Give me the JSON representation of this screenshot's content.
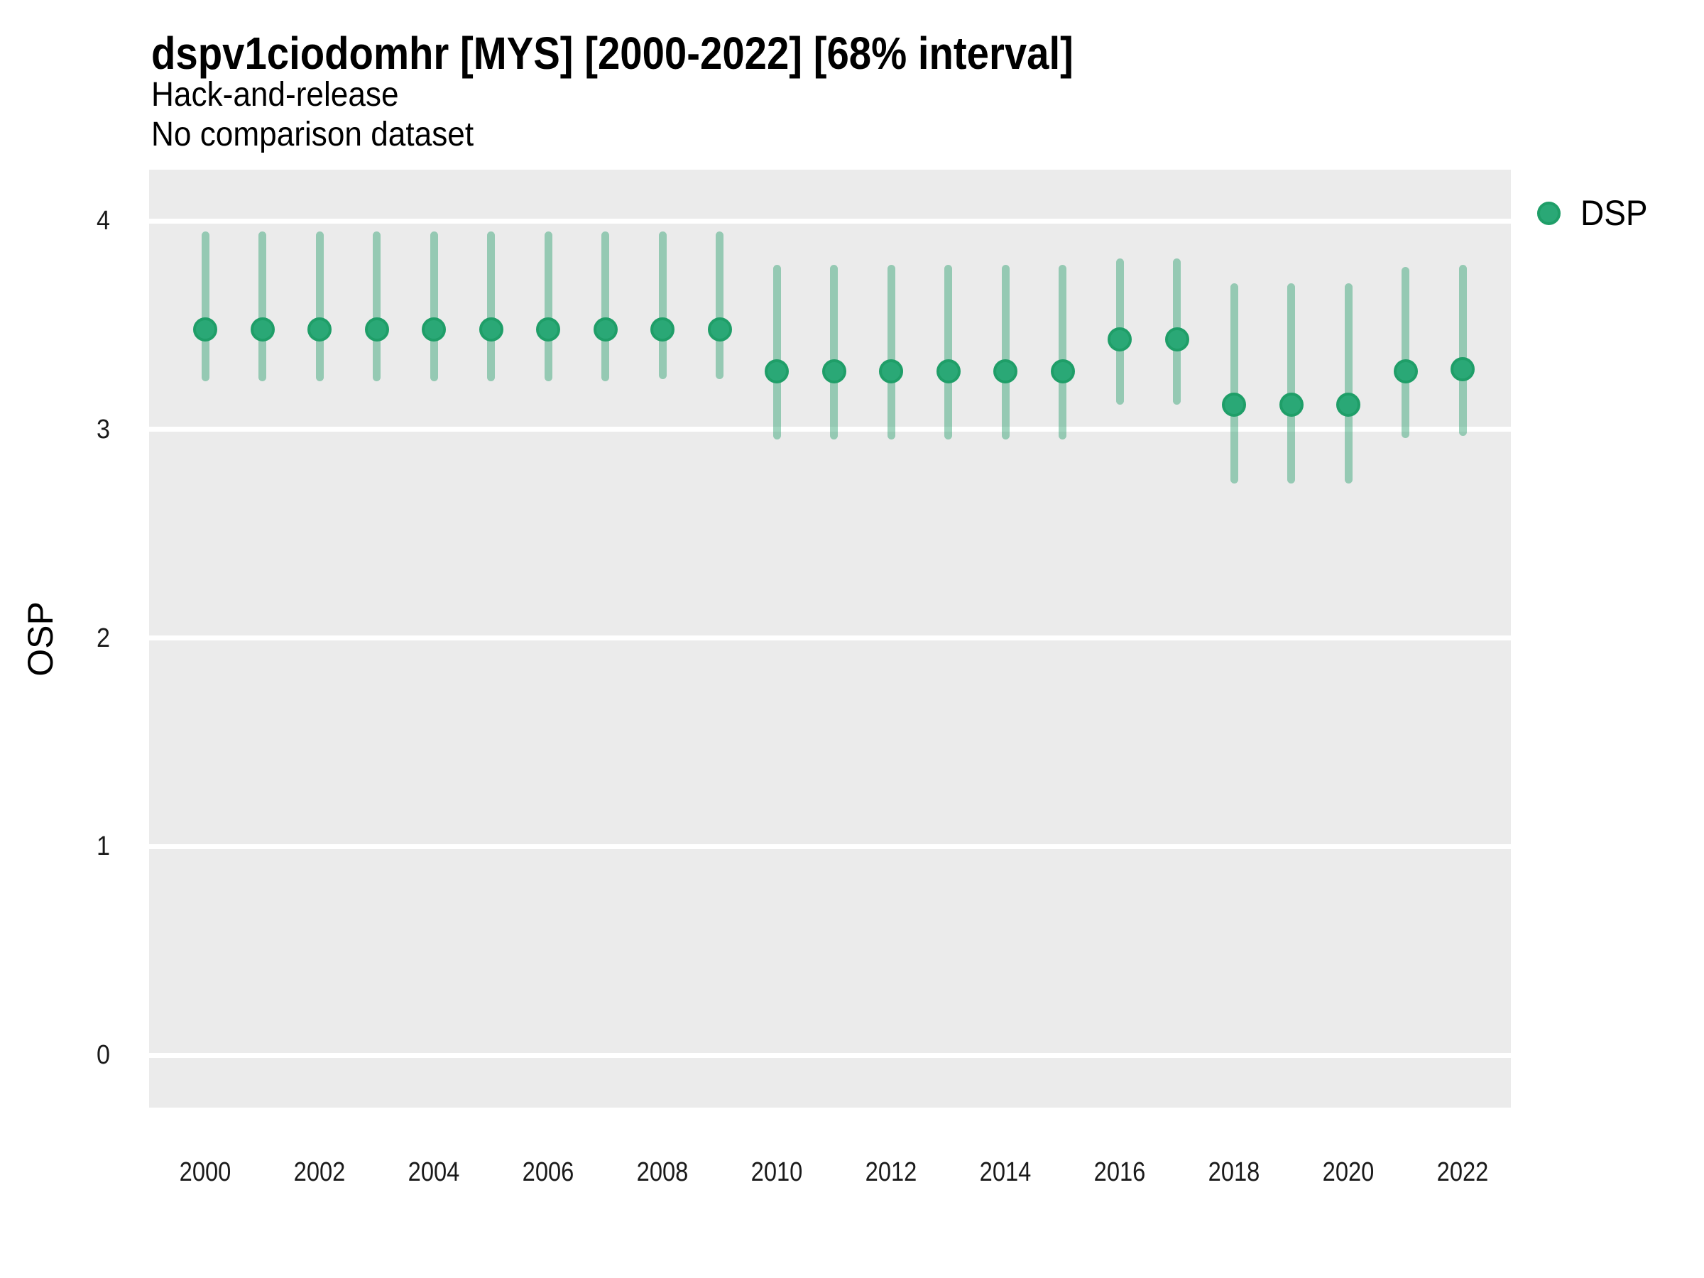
{
  "title": "dspv1ciodomhr [MYS] [2000-2022] [68% interval]",
  "subtitle_line1": "Hack-and-release",
  "subtitle_line2": "No comparison dataset",
  "y_axis_label": "OSP",
  "legend": {
    "label": "DSP"
  },
  "colors": {
    "point_fill": "#2aa876",
    "point_stroke": "#1f9e68",
    "interval": "rgba(44,160,110,0.45)",
    "panel_bg": "#ebebeb",
    "gridline": "#ffffff",
    "tick_text": "#1a1a1a"
  },
  "chart_data": {
    "type": "scatter",
    "subtype": "point-interval",
    "title": "dspv1ciodomhr [MYS] [2000-2022] [68% interval]",
    "subtitle": [
      "Hack-and-release",
      "No comparison dataset"
    ],
    "xlabel": "",
    "ylabel": "OSP",
    "interval_level": "68%",
    "legend_position": "right-top",
    "grid": "horizontal-major-only",
    "ylim": [
      -0.25,
      4.25
    ],
    "y_ticks": [
      0,
      1,
      2,
      3,
      4
    ],
    "x_ticks": [
      2000,
      2002,
      2004,
      2006,
      2008,
      2010,
      2012,
      2014,
      2016,
      2018,
      2020,
      2022
    ],
    "x": [
      2000,
      2001,
      2002,
      2003,
      2004,
      2005,
      2006,
      2007,
      2008,
      2009,
      2010,
      2011,
      2012,
      2013,
      2014,
      2015,
      2016,
      2017,
      2018,
      2019,
      2020,
      2021,
      2022
    ],
    "series": [
      {
        "name": "DSP",
        "center": [
          3.48,
          3.48,
          3.48,
          3.48,
          3.48,
          3.48,
          3.48,
          3.48,
          3.48,
          3.48,
          3.28,
          3.28,
          3.28,
          3.28,
          3.28,
          3.28,
          3.43,
          3.43,
          3.12,
          3.12,
          3.12,
          3.28,
          3.29
        ],
        "lower": [
          3.23,
          3.23,
          3.23,
          3.23,
          3.23,
          3.23,
          3.23,
          3.23,
          3.24,
          3.24,
          2.95,
          2.95,
          2.95,
          2.95,
          2.95,
          2.95,
          3.12,
          3.12,
          2.74,
          2.74,
          2.74,
          2.96,
          2.97
        ],
        "upper": [
          3.95,
          3.95,
          3.95,
          3.95,
          3.95,
          3.95,
          3.95,
          3.95,
          3.95,
          3.95,
          3.79,
          3.79,
          3.79,
          3.79,
          3.79,
          3.79,
          3.82,
          3.82,
          3.7,
          3.7,
          3.7,
          3.78,
          3.79
        ]
      }
    ]
  }
}
